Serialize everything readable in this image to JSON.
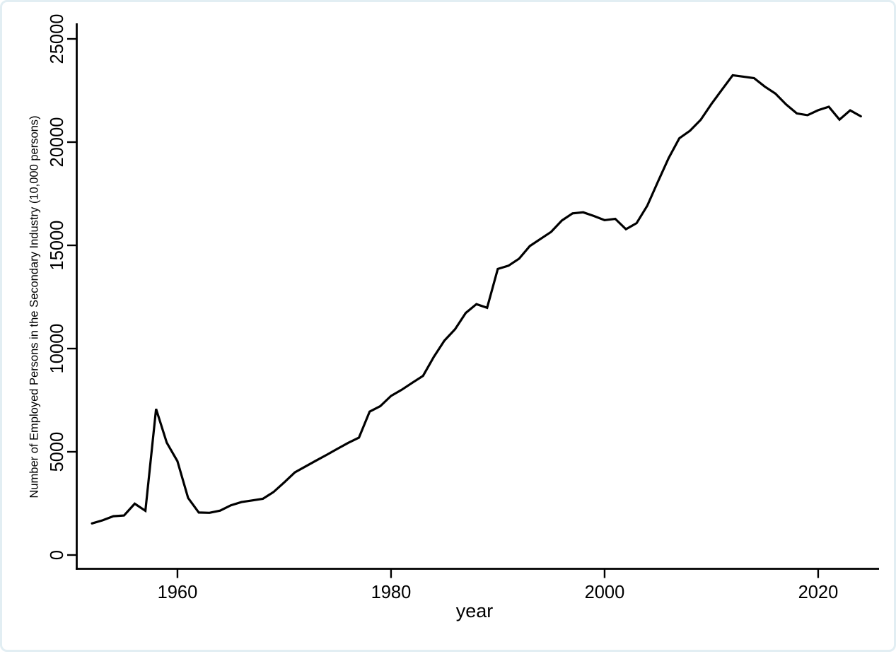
{
  "window": {
    "background": "#ffffff",
    "frame_border_color": "#e2eef3"
  },
  "chart_data": {
    "type": "line",
    "title": "",
    "xlabel": "year",
    "ylabel": "Number of Employed Persons in the Secondary Industry (10,000 persons)",
    "x_ticks": [
      1960,
      1980,
      2000,
      2020
    ],
    "y_ticks": [
      0,
      5000,
      10000,
      15000,
      20000,
      25000
    ],
    "xlim": [
      1950.6,
      2025.7
    ],
    "ylim": [
      0,
      25000
    ],
    "grid": false,
    "legend_position": "none",
    "line_color": "#000000",
    "axis_color": "#000000",
    "series": [
      {
        "name": "employed-persons-secondary-industry",
        "x": [
          1952,
          1953,
          1954,
          1955,
          1956,
          1957,
          1958,
          1959,
          1960,
          1961,
          1962,
          1963,
          1964,
          1965,
          1966,
          1967,
          1968,
          1969,
          1970,
          1971,
          1972,
          1973,
          1974,
          1975,
          1976,
          1977,
          1978,
          1979,
          1980,
          1981,
          1982,
          1983,
          1984,
          1985,
          1986,
          1987,
          1988,
          1989,
          1990,
          1991,
          1992,
          1993,
          1994,
          1995,
          1996,
          1997,
          1998,
          1999,
          2000,
          2001,
          2002,
          2003,
          2004,
          2005,
          2006,
          2007,
          2008,
          2009,
          2010,
          2011,
          2012,
          2013,
          2014,
          2015,
          2016,
          2017,
          2018,
          2019,
          2020,
          2021,
          2022,
          2023,
          2024
        ],
        "values": [
          1531,
          1680,
          1881,
          1913,
          2486,
          2142,
          7076,
          5441,
          4543,
          2763,
          2059,
          2043,
          2151,
          2408,
          2565,
          2644,
          2722,
          3050,
          3518,
          4005,
          4291,
          4578,
          4860,
          5152,
          5434,
          5690,
          6945,
          7214,
          7707,
          8003,
          8346,
          8679,
          9590,
          10384,
          10939,
          11726,
          12152,
          11976,
          13856,
          14015,
          14355,
          14965,
          15312,
          15655,
          16203,
          16547,
          16600,
          16421,
          16219,
          16284,
          15780,
          16077,
          16920,
          18084,
          19225,
          20186,
          20553,
          21080,
          21842,
          22544,
          23241,
          23170,
          23099,
          22693,
          22350,
          21824,
          21390,
          21305,
          21543,
          21712,
          21090,
          21536,
          21250
        ]
      }
    ]
  }
}
